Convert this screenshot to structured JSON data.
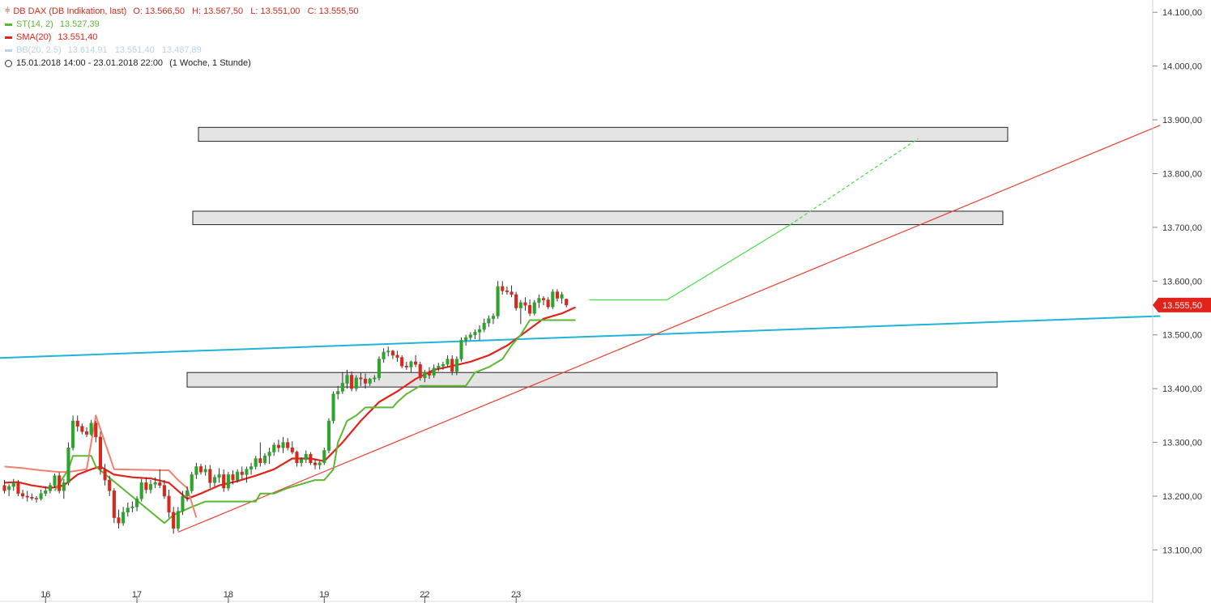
{
  "legend": {
    "instrument": "DB DAX (DB Indikation, last)",
    "ohlc": "O: 13.566,50   H: 13.567,50   L: 13.551,00   C: 13.555,50",
    "st_label": "ST(14, 2)",
    "st_value": "13.527,39",
    "sma_label": "SMA(20)",
    "sma_value": "13.551,40",
    "bb_label": "BB(20, 2.5)",
    "bb_values": "13.614,91   13.551,40   13.487,89",
    "period": "15.01.2018 14:00 - 23.01.2018 22:00",
    "period_note": "(1 Woche, 1 Stunde)"
  },
  "price_tag": "13.555,50",
  "colors": {
    "candle_up": "#2ea32e",
    "candle_down": "#d42a1d",
    "st": "#5cb832",
    "sma": "#e2231a",
    "bb": "#b9d3e3",
    "trend_cyan": "#1fb5d9",
    "trend_red": "#e84030",
    "projection": "#44dd44",
    "zone_fill": "#e4e4e4",
    "price_tag": "#e2231a"
  },
  "chart_data": {
    "type": "candlestick",
    "title": "DB DAX (DB Indikation, last)",
    "ylim": [
      13040,
      14120
    ],
    "y_ticks": [
      {
        "v": 14100,
        "label": "14.100,00"
      },
      {
        "v": 14000,
        "label": "14.000,00"
      },
      {
        "v": 13900,
        "label": "13.900,00"
      },
      {
        "v": 13800,
        "label": "13.800,00"
      },
      {
        "v": 13700,
        "label": "13.700,00"
      },
      {
        "v": 13600,
        "label": "13.600,00"
      },
      {
        "v": 13500,
        "label": "13.500,00"
      },
      {
        "v": 13400,
        "label": "13.400,00"
      },
      {
        "v": 13300,
        "label": "13.300,00"
      },
      {
        "v": 13200,
        "label": "13.200,00"
      },
      {
        "v": 13100,
        "label": "13.100,00"
      }
    ],
    "x_ticks": [
      {
        "i": 9,
        "label": "16"
      },
      {
        "i": 29,
        "label": "17"
      },
      {
        "i": 49,
        "label": "18"
      },
      {
        "i": 70,
        "label": "19"
      },
      {
        "i": 92,
        "label": "22"
      },
      {
        "i": 112,
        "label": "23"
      }
    ],
    "candles": [
      [
        13220,
        13230,
        13205,
        13210
      ],
      [
        13212,
        13222,
        13200,
        13218
      ],
      [
        13218,
        13232,
        13210,
        13225
      ],
      [
        13225,
        13230,
        13200,
        13205
      ],
      [
        13205,
        13212,
        13195,
        13200
      ],
      [
        13200,
        13210,
        13190,
        13198
      ],
      [
        13198,
        13205,
        13192,
        13196
      ],
      [
        13196,
        13200,
        13188,
        13195
      ],
      [
        13195,
        13212,
        13192,
        13205
      ],
      [
        13205,
        13218,
        13200,
        13210
      ],
      [
        13210,
        13225,
        13205,
        13220
      ],
      [
        13220,
        13242,
        13215,
        13238
      ],
      [
        13238,
        13244,
        13205,
        13210
      ],
      [
        13210,
        13232,
        13195,
        13225
      ],
      [
        13225,
        13300,
        13220,
        13290
      ],
      [
        13290,
        13350,
        13285,
        13340
      ],
      [
        13340,
        13350,
        13320,
        13330
      ],
      [
        13330,
        13335,
        13315,
        13320
      ],
      [
        13320,
        13328,
        13310,
        13315
      ],
      [
        13315,
        13342,
        13312,
        13336
      ],
      [
        13336,
        13340,
        13300,
        13310
      ],
      [
        13310,
        13320,
        13240,
        13250
      ],
      [
        13250,
        13260,
        13220,
        13230
      ],
      [
        13230,
        13238,
        13200,
        13210
      ],
      [
        13210,
        13215,
        13150,
        13160
      ],
      [
        13160,
        13175,
        13140,
        13150
      ],
      [
        13150,
        13180,
        13145,
        13170
      ],
      [
        13170,
        13188,
        13162,
        13178
      ],
      [
        13178,
        13190,
        13170,
        13180
      ],
      [
        13180,
        13200,
        13172,
        13195
      ],
      [
        13195,
        13232,
        13190,
        13225
      ],
      [
        13225,
        13235,
        13205,
        13212
      ],
      [
        13212,
        13230,
        13205,
        13222
      ],
      [
        13222,
        13235,
        13215,
        13225
      ],
      [
        13225,
        13250,
        13215,
        13220
      ],
      [
        13220,
        13230,
        13195,
        13200
      ],
      [
        13200,
        13212,
        13160,
        13170
      ],
      [
        13170,
        13180,
        13130,
        13140
      ],
      [
        13140,
        13180,
        13135,
        13172
      ],
      [
        13172,
        13210,
        13165,
        13200
      ],
      [
        13200,
        13218,
        13190,
        13210
      ],
      [
        13210,
        13245,
        13205,
        13240
      ],
      [
        13240,
        13262,
        13232,
        13255
      ],
      [
        13255,
        13260,
        13240,
        13245
      ],
      [
        13245,
        13258,
        13238,
        13250
      ],
      [
        13250,
        13258,
        13215,
        13225
      ],
      [
        13225,
        13240,
        13218,
        13235
      ],
      [
        13235,
        13252,
        13225,
        13240
      ],
      [
        13240,
        13250,
        13208,
        13215
      ],
      [
        13215,
        13245,
        13210,
        13240
      ],
      [
        13240,
        13248,
        13222,
        13230
      ],
      [
        13230,
        13250,
        13225,
        13245
      ],
      [
        13245,
        13255,
        13232,
        13240
      ],
      [
        13240,
        13255,
        13225,
        13250
      ],
      [
        13250,
        13262,
        13240,
        13255
      ],
      [
        13255,
        13275,
        13250,
        13270
      ],
      [
        13270,
        13300,
        13255,
        13262
      ],
      [
        13262,
        13280,
        13258,
        13275
      ],
      [
        13275,
        13290,
        13260,
        13282
      ],
      [
        13282,
        13300,
        13275,
        13295
      ],
      [
        13295,
        13305,
        13282,
        13290
      ],
      [
        13290,
        13310,
        13280,
        13300
      ],
      [
        13300,
        13308,
        13285,
        13290
      ],
      [
        13290,
        13302,
        13278,
        13282
      ],
      [
        13282,
        13285,
        13255,
        13262
      ],
      [
        13262,
        13272,
        13255,
        13268
      ],
      [
        13268,
        13285,
        13262,
        13278
      ],
      [
        13278,
        13282,
        13258,
        13262
      ],
      [
        13262,
        13270,
        13250,
        13258
      ],
      [
        13258,
        13265,
        13250,
        13262
      ],
      [
        13262,
        13290,
        13258,
        13285
      ],
      [
        13285,
        13345,
        13280,
        13340
      ],
      [
        13340,
        13395,
        13335,
        13390
      ],
      [
        13390,
        13405,
        13380,
        13395
      ],
      [
        13395,
        13430,
        13390,
        13410
      ],
      [
        13410,
        13435,
        13400,
        13425
      ],
      [
        13425,
        13432,
        13395,
        13400
      ],
      [
        13400,
        13425,
        13395,
        13420
      ],
      [
        13420,
        13430,
        13405,
        13418
      ],
      [
        13418,
        13428,
        13400,
        13410
      ],
      [
        13410,
        13420,
        13405,
        13418
      ],
      [
        13418,
        13425,
        13412,
        13420
      ],
      [
        13420,
        13460,
        13415,
        13455
      ],
      [
        13455,
        13475,
        13448,
        13468
      ],
      [
        13468,
        13478,
        13460,
        13470
      ],
      [
        13470,
        13472,
        13455,
        13462
      ],
      [
        13462,
        13470,
        13450,
        13458
      ],
      [
        13458,
        13462,
        13438,
        13442
      ],
      [
        13442,
        13450,
        13435,
        13440
      ],
      [
        13440,
        13452,
        13430,
        13450
      ],
      [
        13450,
        13462,
        13440,
        13445
      ],
      [
        13445,
        13450,
        13415,
        13420
      ],
      [
        13420,
        13435,
        13412,
        13430
      ],
      [
        13430,
        13440,
        13418,
        13425
      ],
      [
        13425,
        13445,
        13420,
        13438
      ],
      [
        13438,
        13448,
        13432,
        13442
      ],
      [
        13442,
        13450,
        13435,
        13445
      ],
      [
        13445,
        13462,
        13440,
        13455
      ],
      [
        13455,
        13462,
        13425,
        13432
      ],
      [
        13432,
        13460,
        13425,
        13455
      ],
      [
        13455,
        13495,
        13450,
        13490
      ],
      [
        13490,
        13500,
        13480,
        13495
      ],
      [
        13495,
        13505,
        13490,
        13500
      ],
      [
        13500,
        13510,
        13492,
        13505
      ],
      [
        13505,
        13518,
        13490,
        13510
      ],
      [
        13510,
        13530,
        13505,
        13522
      ],
      [
        13522,
        13536,
        13515,
        13530
      ],
      [
        13530,
        13540,
        13520,
        13535
      ],
      [
        13535,
        13600,
        13530,
        13590
      ],
      [
        13590,
        13600,
        13575,
        13582
      ],
      [
        13582,
        13590,
        13575,
        13580
      ],
      [
        13580,
        13592,
        13570,
        13575
      ],
      [
        13575,
        13580,
        13545,
        13550
      ],
      [
        13550,
        13565,
        13520,
        13560
      ],
      [
        13560,
        13570,
        13545,
        13555
      ],
      [
        13555,
        13566,
        13535,
        13540
      ],
      [
        13540,
        13565,
        13536,
        13560
      ],
      [
        13560,
        13575,
        13550,
        13568
      ],
      [
        13568,
        13572,
        13555,
        13565
      ],
      [
        13565,
        13570,
        13548,
        13552
      ],
      [
        13552,
        13585,
        13548,
        13580
      ],
      [
        13580,
        13585,
        13562,
        13568
      ],
      [
        13568,
        13580,
        13558,
        13575
      ],
      [
        13566.5,
        13567.5,
        13551,
        13555.5
      ]
    ],
    "series": [
      {
        "name": "SMA(20)",
        "points": [
          [
            0,
            13225
          ],
          [
            3,
            13226
          ],
          [
            6,
            13220
          ],
          [
            10,
            13215
          ],
          [
            13,
            13220
          ],
          [
            16,
            13240
          ],
          [
            19,
            13250
          ],
          [
            21,
            13255
          ],
          [
            24,
            13240
          ],
          [
            28,
            13235
          ],
          [
            32,
            13233
          ],
          [
            36,
            13225
          ],
          [
            40,
            13195
          ],
          [
            43,
            13205
          ],
          [
            47,
            13220
          ],
          [
            51,
            13228
          ],
          [
            55,
            13238
          ],
          [
            59,
            13250
          ],
          [
            63,
            13270
          ],
          [
            67,
            13270
          ],
          [
            70,
            13265
          ],
          [
            74,
            13300
          ],
          [
            78,
            13340
          ],
          [
            82,
            13375
          ],
          [
            86,
            13395
          ],
          [
            90,
            13418
          ],
          [
            94,
            13435
          ],
          [
            98,
            13442
          ],
          [
            102,
            13450
          ],
          [
            106,
            13462
          ],
          [
            110,
            13480
          ],
          [
            114,
            13505
          ],
          [
            118,
            13530
          ],
          [
            122,
            13540
          ],
          [
            125,
            13551.4
          ]
        ]
      },
      {
        "name": "ST(14, 2)",
        "points": [
          [
            11,
            13210
          ],
          [
            14,
            13250
          ],
          [
            15,
            13275
          ],
          [
            19,
            13275
          ],
          [
            20,
            13255
          ],
          [
            35,
            13150
          ],
          [
            37,
            13165
          ],
          [
            41,
            13180
          ],
          [
            44,
            13190
          ],
          [
            55,
            13190
          ],
          [
            56,
            13205
          ],
          [
            59,
            13205
          ],
          [
            62,
            13215
          ],
          [
            68,
            13230
          ],
          [
            70,
            13230
          ],
          [
            72,
            13250
          ],
          [
            73,
            13300
          ],
          [
            75,
            13340
          ],
          [
            77,
            13350
          ],
          [
            79,
            13365
          ],
          [
            85,
            13365
          ],
          [
            86,
            13375
          ],
          [
            88,
            13390
          ],
          [
            91,
            13405
          ],
          [
            101,
            13405
          ],
          [
            103,
            13430
          ],
          [
            106,
            13440
          ],
          [
            109,
            13455
          ],
          [
            111,
            13480
          ],
          [
            113,
            13500
          ],
          [
            115,
            13527.39
          ],
          [
            125,
            13527.39
          ]
        ]
      },
      {
        "name": "BB(20, 2.5)",
        "points": [
          [
            0,
            13255
          ],
          [
            4,
            13252
          ],
          [
            8,
            13248
          ],
          [
            12,
            13245
          ],
          [
            14,
            13245
          ],
          [
            18,
            13250
          ],
          [
            20,
            13350
          ],
          [
            24,
            13250
          ],
          [
            36,
            13248
          ],
          [
            38,
            13230
          ],
          [
            40,
            13215
          ],
          [
            42,
            13160
          ]
        ]
      }
    ],
    "zones": [
      [
        13860,
        13886
      ],
      [
        13705,
        13730
      ],
      [
        13403,
        13430
      ]
    ],
    "trendlines": [
      {
        "type": "cyan",
        "from": [
          -1,
          13457
        ],
        "to": [
          253,
          13535
        ]
      },
      {
        "type": "red",
        "from": [
          38,
          13133
        ],
        "to": [
          253,
          13890
        ]
      }
    ],
    "projection": [
      [
        128,
        13565
      ],
      [
        145,
        13565
      ],
      [
        172,
        13705
      ]
    ],
    "projection_dashed": [
      [
        172,
        13705
      ],
      [
        200,
        13865
      ]
    ]
  }
}
